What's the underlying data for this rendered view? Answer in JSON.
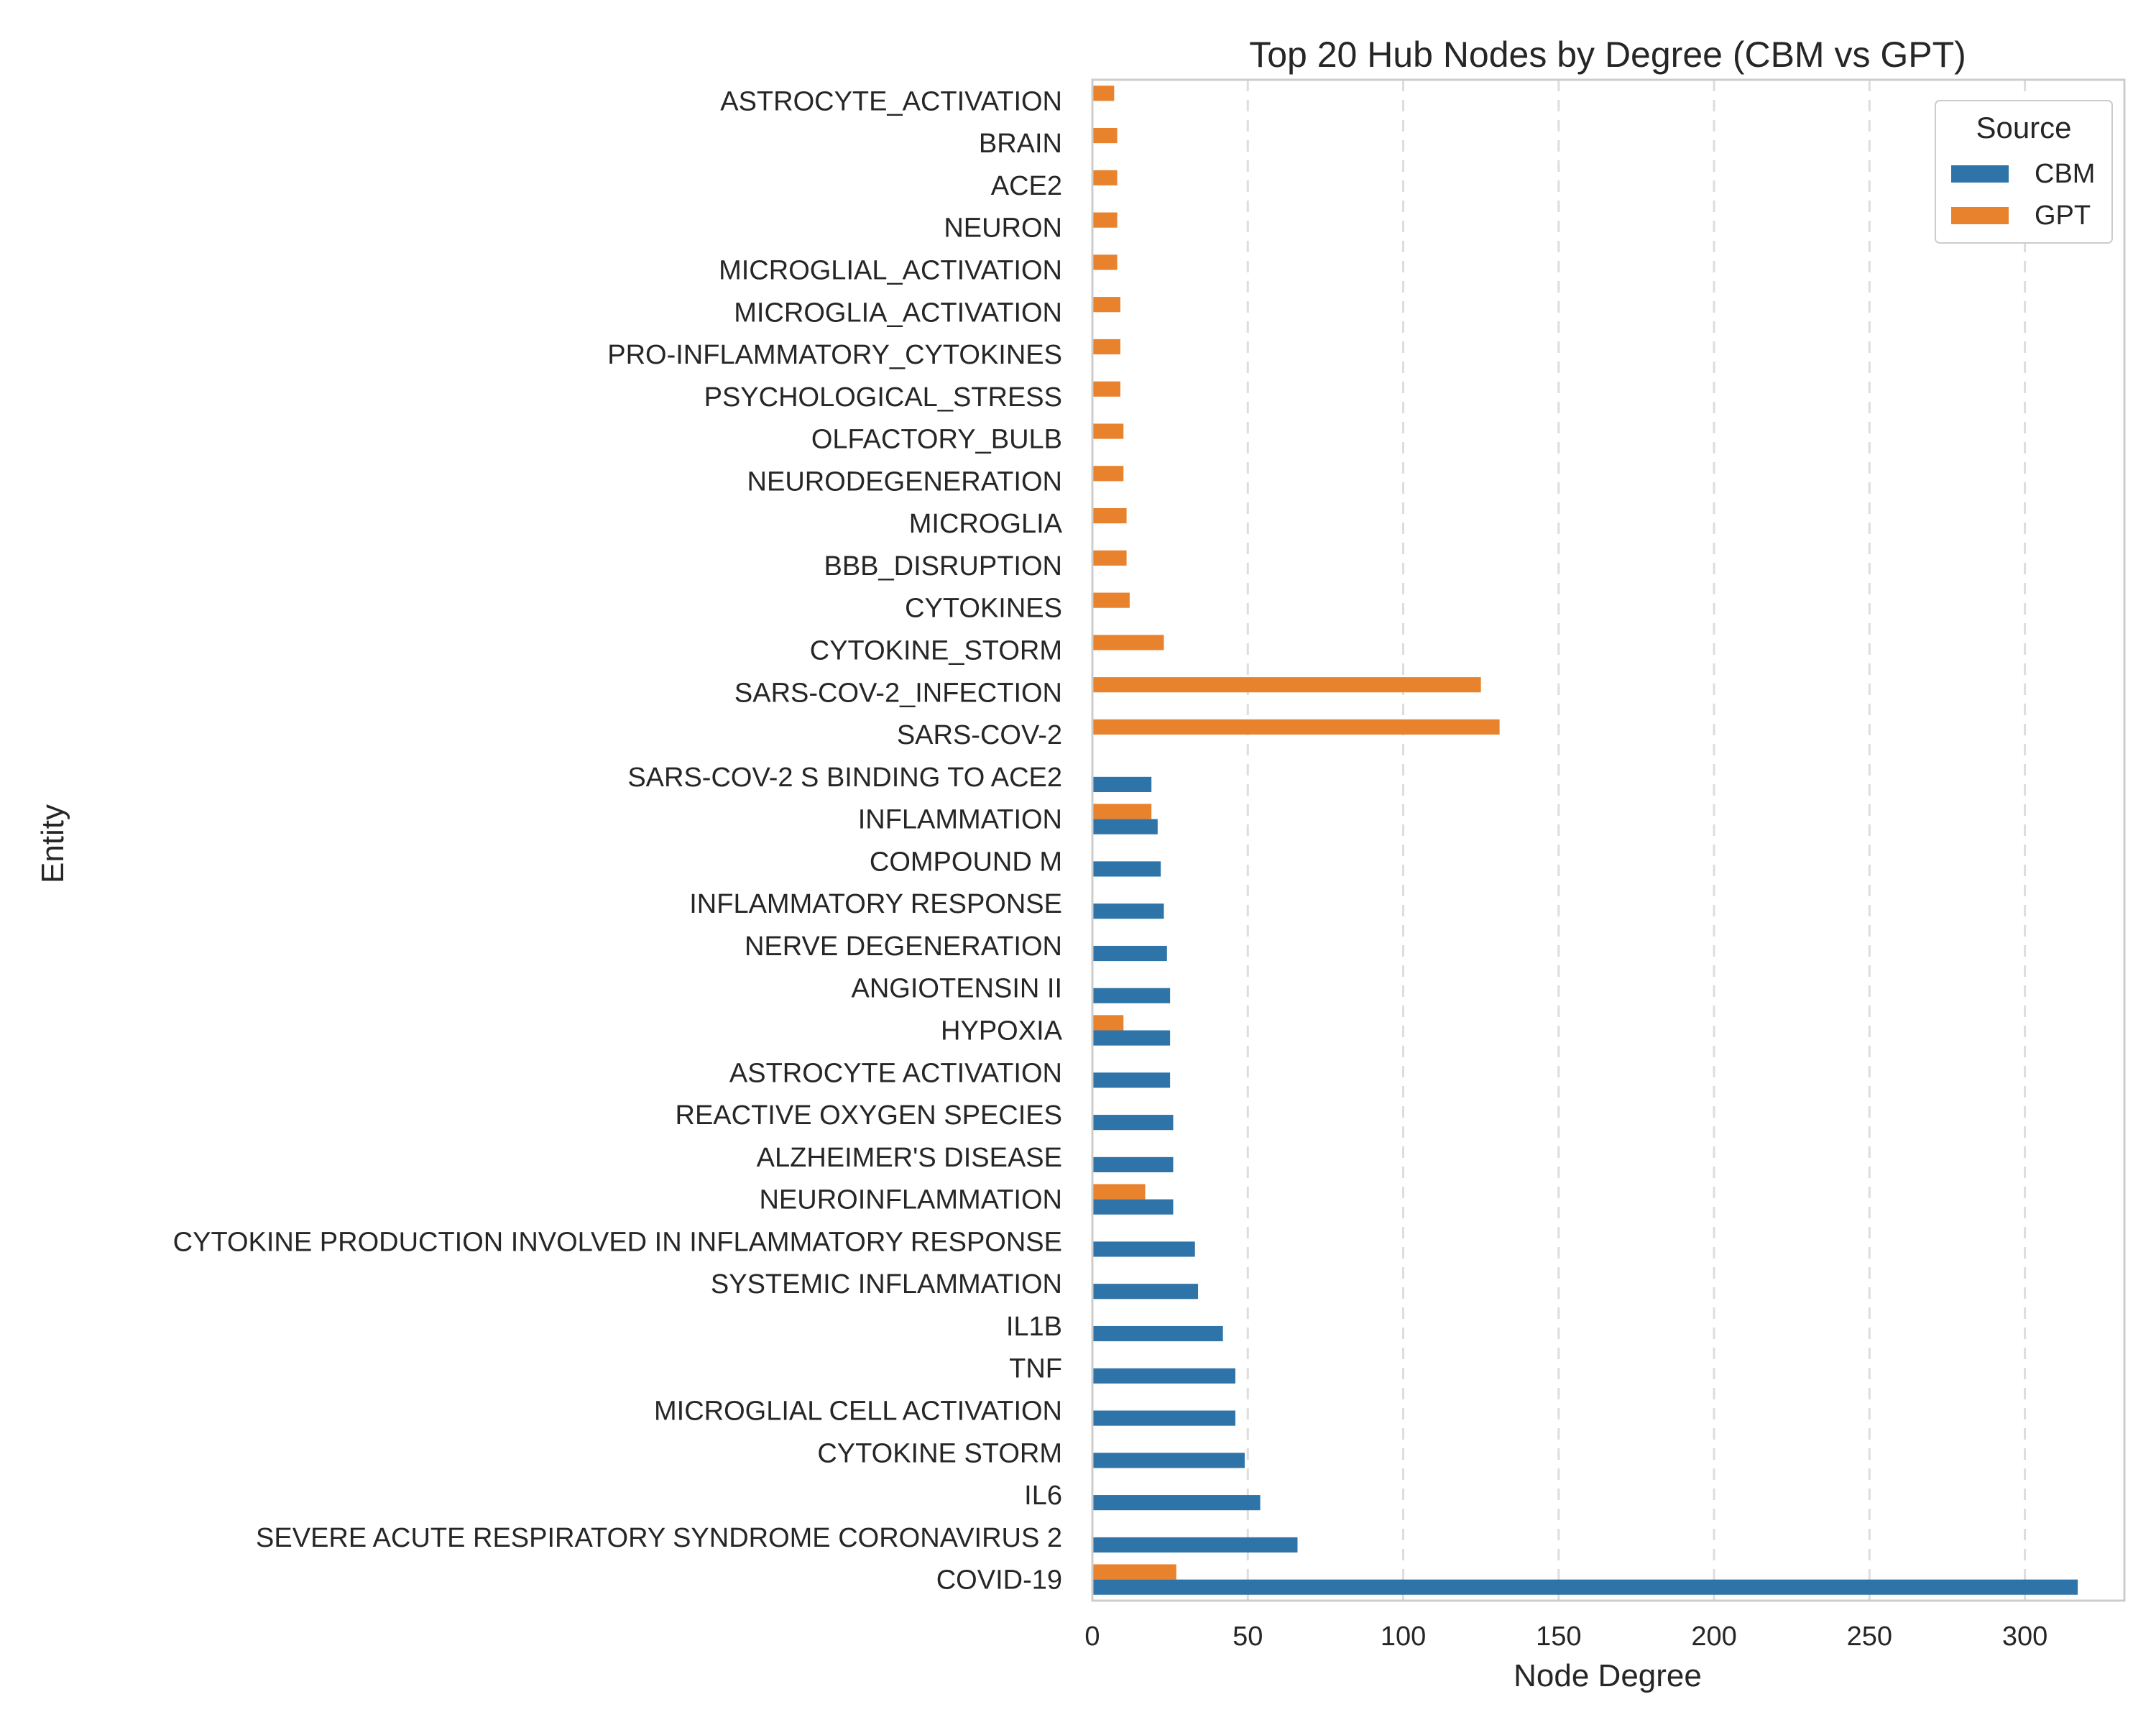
{
  "chart_data": {
    "type": "bar",
    "orientation": "horizontal",
    "title": "Top 20 Hub Nodes by Degree (CBM vs GPT)",
    "xlabel": "Node Degree",
    "ylabel": "Entity",
    "xlim": [
      0,
      332
    ],
    "xticks": [
      0,
      50,
      100,
      150,
      200,
      250,
      300
    ],
    "grid": "vertical-dashed",
    "legend": {
      "title": "Source",
      "placement": "top-right",
      "entries": [
        {
          "name": "CBM",
          "color": "#2f74a8"
        },
        {
          "name": "GPT",
          "color": "#e8822d"
        }
      ]
    },
    "categories": [
      "ASTROCYTE_ACTIVATION",
      "BRAIN",
      "ACE2",
      "NEURON",
      "MICROGLIAL_ACTIVATION",
      "MICROGLIA_ACTIVATION",
      "PRO-INFLAMMATORY_CYTOKINES",
      "PSYCHOLOGICAL_STRESS",
      "OLFACTORY_BULB",
      "NEURODEGENERATION",
      "MICROGLIA",
      "BBB_DISRUPTION",
      "CYTOKINES",
      "CYTOKINE_STORM",
      "SARS-COV-2_INFECTION",
      "SARS-COV-2",
      "SARS-COV-2 S BINDING TO ACE2",
      "INFLAMMATION",
      "COMPOUND M",
      "INFLAMMATORY RESPONSE",
      "NERVE DEGENERATION",
      "ANGIOTENSIN II",
      "HYPOXIA",
      "ASTROCYTE ACTIVATION",
      "REACTIVE OXYGEN SPECIES",
      "ALZHEIMER'S DISEASE",
      "NEUROINFLAMMATION",
      "CYTOKINE PRODUCTION INVOLVED IN INFLAMMATORY RESPONSE",
      "SYSTEMIC INFLAMMATION",
      "IL1B",
      "TNF",
      "MICROGLIAL CELL ACTIVATION",
      "CYTOKINE STORM",
      "IL6",
      "SEVERE ACUTE RESPIRATORY SYNDROME CORONAVIRUS 2",
      "COVID-19"
    ],
    "series": [
      {
        "name": "CBM",
        "color": "#2f74a8",
        "values": [
          null,
          null,
          null,
          null,
          null,
          null,
          null,
          null,
          null,
          null,
          null,
          null,
          null,
          null,
          null,
          null,
          19,
          21,
          22,
          23,
          24,
          25,
          25,
          25,
          26,
          26,
          26,
          33,
          34,
          42,
          46,
          46,
          49,
          54,
          66,
          317
        ]
      },
      {
        "name": "GPT",
        "color": "#e8822d",
        "values": [
          7,
          8,
          8,
          8,
          8,
          9,
          9,
          9,
          10,
          10,
          11,
          11,
          12,
          23,
          125,
          131,
          null,
          19,
          null,
          null,
          null,
          null,
          10,
          null,
          null,
          null,
          17,
          null,
          null,
          null,
          null,
          null,
          null,
          null,
          null,
          27
        ]
      }
    ]
  }
}
